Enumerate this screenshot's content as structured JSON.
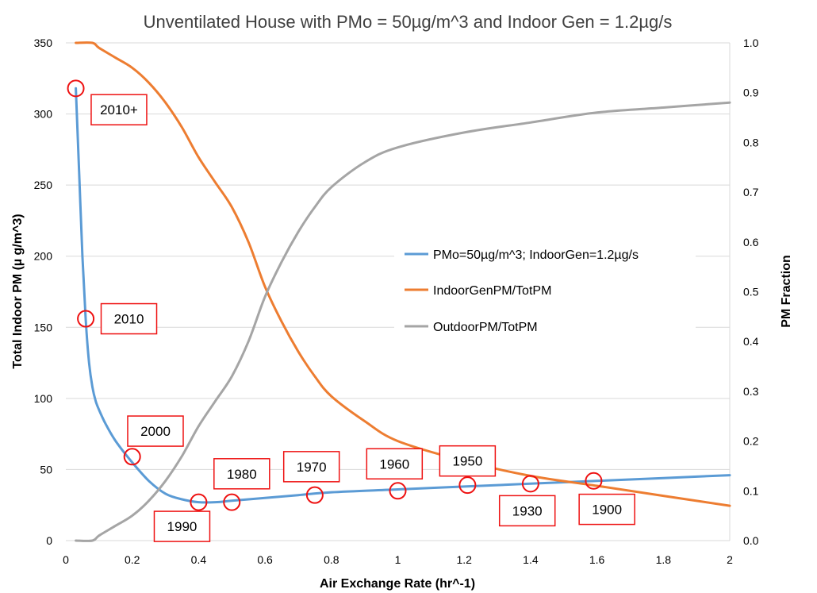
{
  "chart_data": {
    "type": "line",
    "title": "Unventilated House with PMo = 50µg/m^3 and Indoor Gen = 1.2µg/s",
    "xlabel": "Air Exchange Rate (hr^-1)",
    "ylabel": "Total Indoor PM (µ g/m^3)",
    "y2label": "PM Fraction",
    "xlim": [
      0,
      2
    ],
    "ylim": [
      0,
      350
    ],
    "y2lim": [
      0,
      1
    ],
    "x_ticks": [
      "0",
      "0.2",
      "0.4",
      "0.6",
      "0.8",
      "1",
      "1.2",
      "1.4",
      "1.6",
      "1.8",
      "2"
    ],
    "y_ticks": [
      "0",
      "50",
      "100",
      "150",
      "200",
      "250",
      "300",
      "350"
    ],
    "y2_ticks": [
      "0.0",
      "0.1",
      "0.2",
      "0.3",
      "0.4",
      "0.5",
      "0.6",
      "0.7",
      "0.8",
      "0.9",
      "1.0"
    ],
    "grid": "horizontal",
    "legend_position": "center-right",
    "series": [
      {
        "name": "PMo=50µg/m^3; IndoorGen=1.2µg/s",
        "axis": "left",
        "color": "#5b9bd5",
        "x": [
          0.03,
          0.04,
          0.05,
          0.06,
          0.07,
          0.08,
          0.09,
          0.1,
          0.12,
          0.15,
          0.2,
          0.25,
          0.3,
          0.35,
          0.4,
          0.45,
          0.5,
          0.6,
          0.7,
          0.8,
          1.0,
          1.2,
          1.4,
          1.6,
          1.8,
          2.0
        ],
        "values": [
          318,
          260,
          200,
          155,
          125,
          108,
          98,
          92,
          82,
          70,
          55,
          42,
          33,
          29,
          27,
          27,
          28,
          30,
          32,
          34,
          36,
          38,
          40,
          42,
          44,
          46
        ]
      },
      {
        "name": "IndoorGenPM/TotPM",
        "axis": "right",
        "color": "#ed7d31",
        "x": [
          0.03,
          0.08,
          0.1,
          0.15,
          0.2,
          0.25,
          0.3,
          0.35,
          0.4,
          0.45,
          0.5,
          0.55,
          0.6,
          0.65,
          0.7,
          0.75,
          0.8,
          0.9,
          1.0,
          1.2,
          1.4,
          1.6,
          1.8,
          2.0
        ],
        "values": [
          1.0,
          1.0,
          0.99,
          0.97,
          0.95,
          0.92,
          0.88,
          0.83,
          0.77,
          0.72,
          0.67,
          0.6,
          0.51,
          0.44,
          0.38,
          0.33,
          0.29,
          0.24,
          0.2,
          0.16,
          0.13,
          0.11,
          0.09,
          0.07
        ]
      },
      {
        "name": "OutdoorPM/TotPM",
        "axis": "right",
        "color": "#a5a5a5",
        "x": [
          0.03,
          0.08,
          0.1,
          0.15,
          0.2,
          0.25,
          0.3,
          0.35,
          0.4,
          0.45,
          0.5,
          0.55,
          0.6,
          0.65,
          0.7,
          0.75,
          0.8,
          0.9,
          1.0,
          1.2,
          1.4,
          1.6,
          1.8,
          2.0
        ],
        "values": [
          0.0,
          0.0,
          0.01,
          0.03,
          0.05,
          0.08,
          0.12,
          0.17,
          0.23,
          0.28,
          0.33,
          0.4,
          0.49,
          0.56,
          0.62,
          0.67,
          0.71,
          0.76,
          0.79,
          0.82,
          0.84,
          0.86,
          0.87,
          0.88
        ]
      }
    ],
    "annotations": [
      {
        "label": "2010+",
        "x": 0.03,
        "y": 318,
        "label_x": 0.16,
        "label_y": 303
      },
      {
        "label": "2010",
        "x": 0.06,
        "y": 156,
        "label_x": 0.19,
        "label_y": 156
      },
      {
        "label": "2000",
        "x": 0.2,
        "y": 59,
        "label_x": 0.27,
        "label_y": 77
      },
      {
        "label": "1990",
        "x": 0.4,
        "y": 27,
        "label_x": 0.35,
        "label_y": 10
      },
      {
        "label": "1980",
        "x": 0.5,
        "y": 27,
        "label_x": 0.53,
        "label_y": 47
      },
      {
        "label": "1970",
        "x": 0.75,
        "y": 32,
        "label_x": 0.74,
        "label_y": 52
      },
      {
        "label": "1960",
        "x": 1.0,
        "y": 35,
        "label_x": 0.99,
        "label_y": 54
      },
      {
        "label": "1950",
        "x": 1.21,
        "y": 39,
        "label_x": 1.21,
        "label_y": 56
      },
      {
        "label": "1930",
        "x": 1.4,
        "y": 40,
        "label_x": 1.39,
        "label_y": 21
      },
      {
        "label": "1900",
        "x": 1.59,
        "y": 42,
        "label_x": 1.63,
        "label_y": 22
      }
    ]
  }
}
